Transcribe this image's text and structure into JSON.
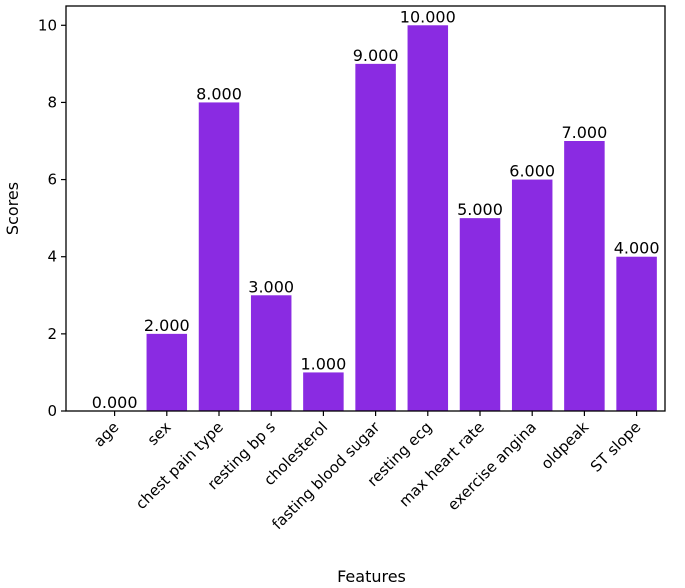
{
  "chart_data": {
    "type": "bar",
    "categories": [
      "age",
      "sex",
      "chest pain type",
      "resting bp s",
      "cholesterol",
      "fasting blood sugar",
      "resting ecg",
      "max heart rate",
      "exercise angina",
      "oldpeak",
      "ST slope"
    ],
    "values": [
      0,
      2,
      8,
      3,
      1,
      9,
      10,
      5,
      6,
      7,
      4
    ],
    "value_labels": [
      "0.000",
      "2.000",
      "8.000",
      "3.000",
      "1.000",
      "9.000",
      "10.000",
      "5.000",
      "6.000",
      "7.000",
      "4.000"
    ],
    "title": "",
    "xlabel": "Features",
    "ylabel": "Scores",
    "ylim": [
      0,
      10.5
    ],
    "yticks": [
      0,
      2,
      4,
      6,
      8,
      10
    ],
    "ytick_labels": [
      "0",
      "2",
      "4",
      "6",
      "8",
      "10"
    ],
    "bar_color": "#8a2be2",
    "grid": false,
    "legend": "none"
  }
}
